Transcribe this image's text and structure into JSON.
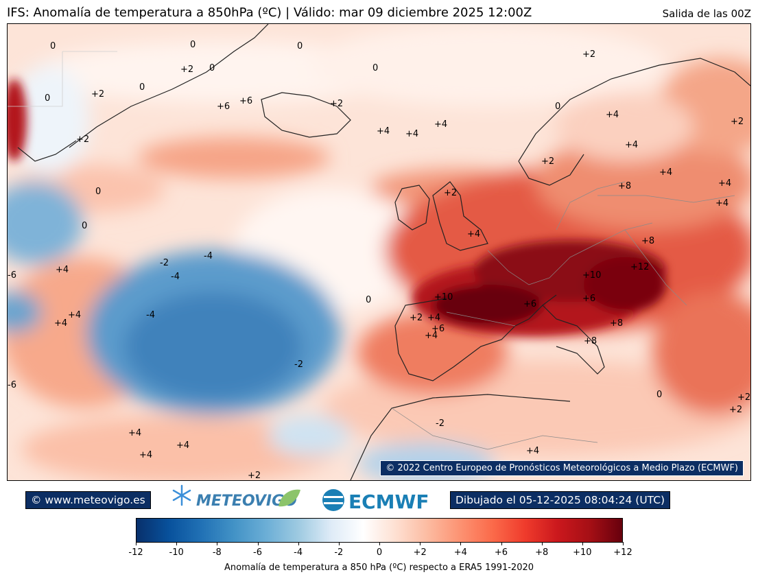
{
  "header": {
    "title": "IFS: Anomalía de temperatura a 850hPa  (ºC) | Válido: mar 09 diciembre 2025 12:00Z",
    "run": "Salida de las 00Z"
  },
  "map": {
    "copyright": "© 2022 Centro Europeo de Pronósticos Meteorológicos a Medio Plazo (ECMWF)",
    "contour_labels": [
      "0",
      "0",
      "0",
      "+2",
      "0",
      "0",
      "+2",
      "0",
      "+2",
      "0",
      "+6",
      "+6",
      "+2",
      "0",
      "+2",
      "+4",
      "+4",
      "+4",
      "+4",
      "+2",
      "+2",
      "+4",
      "+4",
      "+4",
      "+8",
      "+4",
      "+2",
      "0",
      "0",
      "+4",
      "+8",
      "-2",
      "-4",
      "-4",
      "+12",
      "+10",
      "+4",
      "+10",
      "+6",
      "+6",
      "+4",
      "+4",
      "-4",
      "+8",
      "+2",
      "+4",
      "+6",
      "+4",
      "+8",
      "0",
      "-2",
      "-6",
      "-6",
      "0",
      "+2",
      "+2",
      "-2",
      "+4",
      "+4",
      "+4",
      "+4",
      "+2"
    ]
  },
  "footer": {
    "site": "© www.meteovigo.es",
    "meteovigo_logo_text": "METEOVIGO",
    "ecmwf_logo_text": "ECMWF",
    "drawn": "Dibujado el 05-12-2025 08:04:24 (UTC)"
  },
  "colorbar": {
    "ticks": [
      "-12",
      "-10",
      "-8",
      "-6",
      "-4",
      "-2",
      "0",
      "+2",
      "+4",
      "+6",
      "+8",
      "+10",
      "+12"
    ],
    "label": "Anomalía de temperatura a 850 hPa (ºC) respecto a ERA5 1991-2020",
    "colors": [
      "#08306b",
      "#08519c",
      "#2171b5",
      "#4292c6",
      "#6baed6",
      "#9ecae1",
      "#deebf7",
      "#ffffff",
      "#fee0d2",
      "#fcbba1",
      "#fc9272",
      "#fb6a4a",
      "#ef3b2c",
      "#cb181d",
      "#a50f15",
      "#67000d"
    ]
  }
}
